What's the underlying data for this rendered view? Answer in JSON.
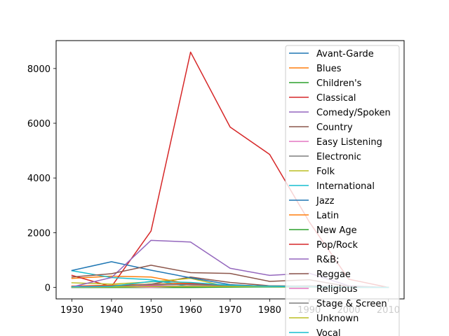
{
  "chart_data": {
    "type": "line",
    "title": "",
    "xlabel": "",
    "ylabel": "",
    "x": [
      1930,
      1940,
      1950,
      1960,
      1970,
      1980,
      1990,
      2000,
      2010
    ],
    "xlim": [
      1926,
      2014
    ],
    "ylim": [
      -420,
      9020
    ],
    "xticks": [
      1930,
      1940,
      1950,
      1960,
      1970,
      1980,
      1990,
      2000,
      2010
    ],
    "yticks": [
      0,
      2000,
      4000,
      6000,
      8000
    ],
    "xtick_labels": [
      "1930",
      "1940",
      "1950",
      "1960",
      "1970",
      "1980",
      "1990",
      "2000",
      "2010"
    ],
    "ytick_labels": [
      "0",
      "2000",
      "4000",
      "6000",
      "8000"
    ],
    "grid": false,
    "legend_position": "right",
    "series": [
      {
        "name": "Avant-Garde",
        "color": "#1f77b4",
        "values": [
          0,
          0,
          5,
          20,
          20,
          10,
          10,
          5,
          0
        ]
      },
      {
        "name": "Blues",
        "color": "#ff7f0e",
        "values": [
          330,
          410,
          380,
          120,
          80,
          50,
          40,
          10,
          0
        ]
      },
      {
        "name": "Children's",
        "color": "#2ca02c",
        "values": [
          20,
          30,
          60,
          30,
          20,
          10,
          10,
          5,
          0
        ]
      },
      {
        "name": "Classical",
        "color": "#d62728",
        "values": [
          440,
          30,
          2060,
          8600,
          5860,
          4860,
          2400,
          300,
          0
        ]
      },
      {
        "name": "Comedy/Spoken",
        "color": "#9467bd",
        "values": [
          0,
          30,
          50,
          40,
          20,
          10,
          10,
          5,
          0
        ]
      },
      {
        "name": "Country",
        "color": "#8c564b",
        "values": [
          30,
          40,
          120,
          380,
          180,
          60,
          40,
          10,
          0
        ]
      },
      {
        "name": "Easy Listening",
        "color": "#e377c2",
        "values": [
          10,
          20,
          80,
          120,
          60,
          30,
          20,
          5,
          0
        ]
      },
      {
        "name": "Electronic",
        "color": "#7f7f7f",
        "values": [
          0,
          0,
          0,
          0,
          20,
          40,
          60,
          20,
          0
        ]
      },
      {
        "name": "Folk",
        "color": "#bcbd22",
        "values": [
          170,
          120,
          200,
          330,
          10,
          10,
          10,
          5,
          0
        ]
      },
      {
        "name": "International",
        "color": "#17becf",
        "values": [
          610,
          360,
          280,
          20,
          10,
          10,
          10,
          5,
          0
        ]
      },
      {
        "name": "Jazz",
        "color": "#1f77b4",
        "values": [
          620,
          940,
          630,
          350,
          100,
          30,
          20,
          10,
          0
        ]
      },
      {
        "name": "Latin",
        "color": "#ff7f0e",
        "values": [
          50,
          80,
          120,
          160,
          70,
          30,
          20,
          5,
          0
        ]
      },
      {
        "name": "New Age",
        "color": "#2ca02c",
        "values": [
          0,
          0,
          0,
          0,
          10,
          30,
          20,
          5,
          0
        ]
      },
      {
        "name": "Pop/Rock",
        "color": "#d62728",
        "values": [
          40,
          60,
          100,
          130,
          80,
          50,
          30,
          10,
          0
        ]
      },
      {
        "name": "R&B;",
        "color": "#9467bd",
        "values": [
          20,
          360,
          1720,
          1660,
          700,
          440,
          520,
          60,
          0
        ]
      },
      {
        "name": "Reggae",
        "color": "#8c564b",
        "values": [
          380,
          500,
          810,
          540,
          510,
          220,
          280,
          30,
          0
        ]
      },
      {
        "name": "Religious",
        "color": "#e377c2",
        "values": [
          30,
          40,
          0,
          60,
          40,
          30,
          20,
          5,
          0
        ]
      },
      {
        "name": "Stage & Screen",
        "color": "#7f7f7f",
        "values": [
          0,
          20,
          120,
          100,
          60,
          60,
          40,
          10,
          0
        ]
      },
      {
        "name": "Unknown",
        "color": "#bcbd22",
        "values": [
          10,
          20,
          30,
          40,
          30,
          20,
          10,
          5,
          0
        ]
      },
      {
        "name": "Vocal",
        "color": "#17becf",
        "values": [
          20,
          40,
          220,
          180,
          80,
          40,
          20,
          5,
          0
        ]
      }
    ]
  }
}
